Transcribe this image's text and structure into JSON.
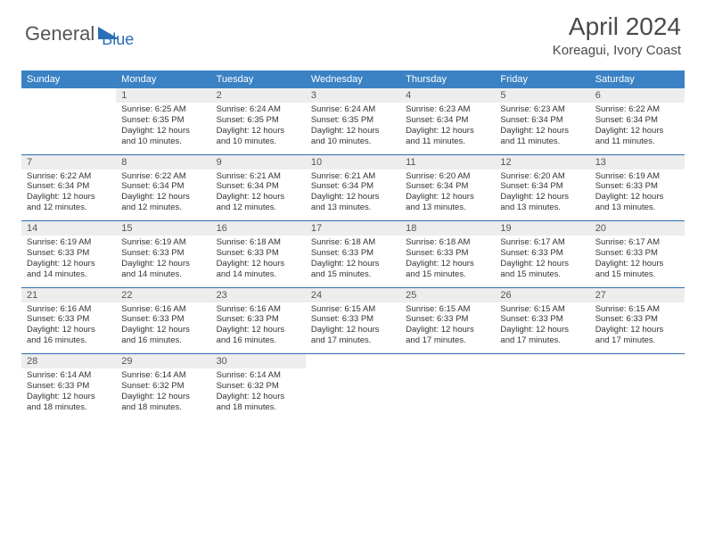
{
  "logo": {
    "part1": "General",
    "part2": "Blue"
  },
  "title": "April 2024",
  "location": "Koreagui, Ivory Coast",
  "colors": {
    "header_bg": "#3b82c4",
    "rule": "#2d6fb6",
    "daynum_bg": "#ededed",
    "text": "#333333",
    "logo_gray": "#555555",
    "logo_blue": "#2d6fb6"
  },
  "day_names": [
    "Sunday",
    "Monday",
    "Tuesday",
    "Wednesday",
    "Thursday",
    "Friday",
    "Saturday"
  ],
  "weeks": [
    [
      null,
      {
        "n": "1",
        "sr": "6:25 AM",
        "ss": "6:35 PM",
        "dl": "12 hours and 10 minutes."
      },
      {
        "n": "2",
        "sr": "6:24 AM",
        "ss": "6:35 PM",
        "dl": "12 hours and 10 minutes."
      },
      {
        "n": "3",
        "sr": "6:24 AM",
        "ss": "6:35 PM",
        "dl": "12 hours and 10 minutes."
      },
      {
        "n": "4",
        "sr": "6:23 AM",
        "ss": "6:34 PM",
        "dl": "12 hours and 11 minutes."
      },
      {
        "n": "5",
        "sr": "6:23 AM",
        "ss": "6:34 PM",
        "dl": "12 hours and 11 minutes."
      },
      {
        "n": "6",
        "sr": "6:22 AM",
        "ss": "6:34 PM",
        "dl": "12 hours and 11 minutes."
      }
    ],
    [
      {
        "n": "7",
        "sr": "6:22 AM",
        "ss": "6:34 PM",
        "dl": "12 hours and 12 minutes."
      },
      {
        "n": "8",
        "sr": "6:22 AM",
        "ss": "6:34 PM",
        "dl": "12 hours and 12 minutes."
      },
      {
        "n": "9",
        "sr": "6:21 AM",
        "ss": "6:34 PM",
        "dl": "12 hours and 12 minutes."
      },
      {
        "n": "10",
        "sr": "6:21 AM",
        "ss": "6:34 PM",
        "dl": "12 hours and 13 minutes."
      },
      {
        "n": "11",
        "sr": "6:20 AM",
        "ss": "6:34 PM",
        "dl": "12 hours and 13 minutes."
      },
      {
        "n": "12",
        "sr": "6:20 AM",
        "ss": "6:34 PM",
        "dl": "12 hours and 13 minutes."
      },
      {
        "n": "13",
        "sr": "6:19 AM",
        "ss": "6:33 PM",
        "dl": "12 hours and 13 minutes."
      }
    ],
    [
      {
        "n": "14",
        "sr": "6:19 AM",
        "ss": "6:33 PM",
        "dl": "12 hours and 14 minutes."
      },
      {
        "n": "15",
        "sr": "6:19 AM",
        "ss": "6:33 PM",
        "dl": "12 hours and 14 minutes."
      },
      {
        "n": "16",
        "sr": "6:18 AM",
        "ss": "6:33 PM",
        "dl": "12 hours and 14 minutes."
      },
      {
        "n": "17",
        "sr": "6:18 AM",
        "ss": "6:33 PM",
        "dl": "12 hours and 15 minutes."
      },
      {
        "n": "18",
        "sr": "6:18 AM",
        "ss": "6:33 PM",
        "dl": "12 hours and 15 minutes."
      },
      {
        "n": "19",
        "sr": "6:17 AM",
        "ss": "6:33 PM",
        "dl": "12 hours and 15 minutes."
      },
      {
        "n": "20",
        "sr": "6:17 AM",
        "ss": "6:33 PM",
        "dl": "12 hours and 15 minutes."
      }
    ],
    [
      {
        "n": "21",
        "sr": "6:16 AM",
        "ss": "6:33 PM",
        "dl": "12 hours and 16 minutes."
      },
      {
        "n": "22",
        "sr": "6:16 AM",
        "ss": "6:33 PM",
        "dl": "12 hours and 16 minutes."
      },
      {
        "n": "23",
        "sr": "6:16 AM",
        "ss": "6:33 PM",
        "dl": "12 hours and 16 minutes."
      },
      {
        "n": "24",
        "sr": "6:15 AM",
        "ss": "6:33 PM",
        "dl": "12 hours and 17 minutes."
      },
      {
        "n": "25",
        "sr": "6:15 AM",
        "ss": "6:33 PM",
        "dl": "12 hours and 17 minutes."
      },
      {
        "n": "26",
        "sr": "6:15 AM",
        "ss": "6:33 PM",
        "dl": "12 hours and 17 minutes."
      },
      {
        "n": "27",
        "sr": "6:15 AM",
        "ss": "6:33 PM",
        "dl": "12 hours and 17 minutes."
      }
    ],
    [
      {
        "n": "28",
        "sr": "6:14 AM",
        "ss": "6:33 PM",
        "dl": "12 hours and 18 minutes."
      },
      {
        "n": "29",
        "sr": "6:14 AM",
        "ss": "6:32 PM",
        "dl": "12 hours and 18 minutes."
      },
      {
        "n": "30",
        "sr": "6:14 AM",
        "ss": "6:32 PM",
        "dl": "12 hours and 18 minutes."
      },
      null,
      null,
      null,
      null
    ]
  ],
  "labels": {
    "sunrise": "Sunrise:",
    "sunset": "Sunset:",
    "daylight": "Daylight:"
  }
}
